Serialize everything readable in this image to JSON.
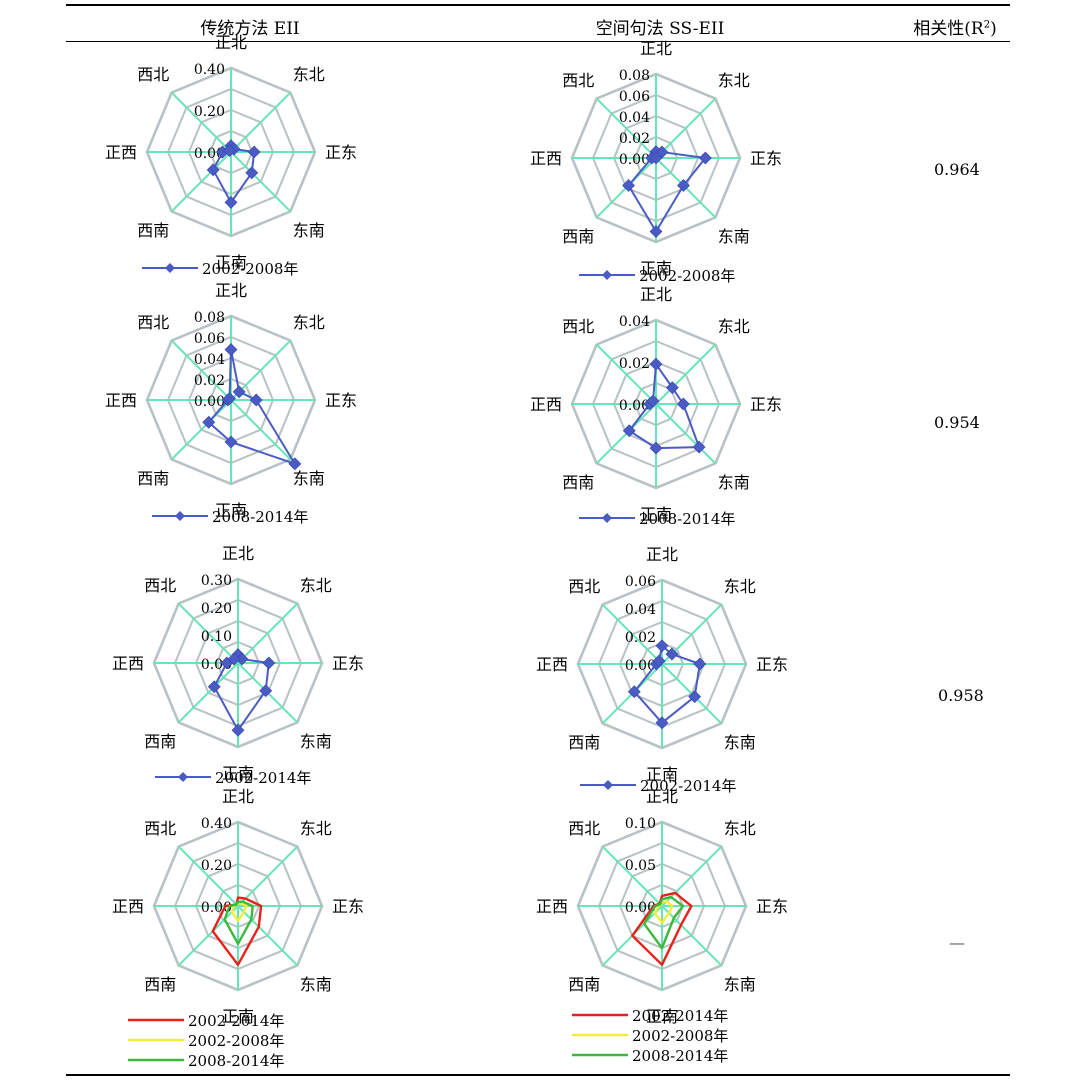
{
  "header": {
    "col1": "传统方法 EII",
    "col2": "空间句法 SS-EII",
    "col3_prefix": "相关性(R",
    "col3_sup": "2",
    "col3_suffix": ")"
  },
  "r2_values": [
    "0.964",
    "0.954",
    "0.958",
    "—"
  ],
  "chart_data": [
    {
      "type": "radar",
      "method": "EII",
      "row": 1,
      "categories": [
        "正北",
        "东北",
        "正东",
        "东南",
        "正南",
        "西南",
        "正西",
        "西北"
      ],
      "ticks": [
        "0.00",
        "0.20",
        "0.40"
      ],
      "rmax": 0.4,
      "rings": 4,
      "series": [
        {
          "name": "2002-2008年",
          "color": "#4A5BC4",
          "marker": "diamond",
          "values": [
            0.03,
            0.02,
            0.11,
            0.14,
            0.24,
            0.12,
            0.04,
            0.01
          ]
        }
      ]
    },
    {
      "type": "radar",
      "method": "SS-EII",
      "row": 1,
      "categories": [
        "正北",
        "东北",
        "正东",
        "东南",
        "正南",
        "西南",
        "正西",
        "西北"
      ],
      "ticks": [
        "0.00",
        "0.02",
        "0.04",
        "0.06",
        "0.08"
      ],
      "rmax": 0.08,
      "rings": 4,
      "series": [
        {
          "name": "2002-2008年",
          "color": "#4A5BC4",
          "marker": "diamond",
          "values": [
            0.006,
            0.008,
            0.047,
            0.037,
            0.07,
            0.037,
            0.004,
            0.0
          ]
        }
      ]
    },
    {
      "type": "radar",
      "method": "EII",
      "row": 2,
      "categories": [
        "正北",
        "东北",
        "正东",
        "东南",
        "正南",
        "西南",
        "正西",
        "西北"
      ],
      "ticks": [
        "0.00",
        "0.02",
        "0.04",
        "0.06",
        "0.08"
      ],
      "rmax": 0.08,
      "rings": 4,
      "series": [
        {
          "name": "2008-2014年",
          "color": "#4A5BC4",
          "marker": "diamond",
          "values": [
            0.048,
            0.011,
            0.024,
            0.086,
            0.04,
            0.03,
            0.003,
            0.002
          ]
        }
      ]
    },
    {
      "type": "radar",
      "method": "SS-EII",
      "row": 2,
      "categories": [
        "正北",
        "东北",
        "正东",
        "东南",
        "正南",
        "西南",
        "正西",
        "西北"
      ],
      "ticks": [
        "0.00",
        "0.02",
        "0.04"
      ],
      "rmax": 0.04,
      "rings": 4,
      "series": [
        {
          "name": "2008-2014年",
          "color": "#4A5BC4",
          "marker": "diamond",
          "values": [
            0.019,
            0.011,
            0.013,
            0.029,
            0.021,
            0.018,
            0.003,
            0.002
          ]
        }
      ]
    },
    {
      "type": "radar",
      "method": "EII",
      "row": 3,
      "categories": [
        "正北",
        "东北",
        "正东",
        "东南",
        "正南",
        "西南",
        "正西",
        "西北"
      ],
      "ticks": [
        "0.00",
        "0.10",
        "0.20",
        "0.30"
      ],
      "rmax": 0.3,
      "rings": 4,
      "series": [
        {
          "name": "2002-2014年",
          "color": "#4A5BC4",
          "marker": "diamond",
          "values": [
            0.03,
            0.02,
            0.11,
            0.14,
            0.24,
            0.12,
            0.04,
            0.02
          ]
        }
      ]
    },
    {
      "type": "radar",
      "method": "SS-EII",
      "row": 3,
      "categories": [
        "正北",
        "东北",
        "正东",
        "东南",
        "正南",
        "西南",
        "正西",
        "西北"
      ],
      "ticks": [
        "0.00",
        "0.02",
        "0.04",
        "0.06"
      ],
      "rmax": 0.06,
      "rings": 4,
      "series": [
        {
          "name": "2002-2014年",
          "color": "#4A5BC4",
          "marker": "diamond",
          "values": [
            0.013,
            0.01,
            0.027,
            0.033,
            0.042,
            0.028,
            0.004,
            0.003
          ]
        }
      ]
    },
    {
      "type": "radar",
      "method": "EII",
      "row": 4,
      "categories": [
        "正北",
        "东北",
        "正东",
        "东南",
        "正南",
        "西南",
        "正西",
        "西北"
      ],
      "ticks": [
        "0.00",
        "0.20",
        "0.40"
      ],
      "rmax": 0.4,
      "rings": 4,
      "series": [
        {
          "name": "2002-2014年",
          "color": "#E8221A",
          "values": [
            0.04,
            0.05,
            0.11,
            0.14,
            0.28,
            0.17,
            0.06,
            0.01
          ]
        },
        {
          "name": "2002-2008年",
          "color": "#F2EE3C",
          "values": [
            0.01,
            0.02,
            0.04,
            0.04,
            0.07,
            0.04,
            0.02,
            0.01
          ]
        },
        {
          "name": "2008-2014年",
          "color": "#3CB93C",
          "values": [
            0.02,
            0.03,
            0.07,
            0.09,
            0.18,
            0.09,
            0.04,
            0.01
          ]
        }
      ]
    },
    {
      "type": "radar",
      "method": "SS-EII",
      "row": 4,
      "categories": [
        "正北",
        "东北",
        "正东",
        "东南",
        "正南",
        "西南",
        "正西",
        "西北"
      ],
      "ticks": [
        "0.00",
        "0.05",
        "0.10"
      ],
      "rmax": 0.1,
      "rings": 4,
      "series": [
        {
          "name": "2002-2014年",
          "color": "#E8221A",
          "values": [
            0.012,
            0.022,
            0.035,
            0.032,
            0.07,
            0.05,
            0.01,
            0.004
          ]
        },
        {
          "name": "2002-2008年",
          "color": "#F2EE3C",
          "values": [
            0.004,
            0.008,
            0.012,
            0.012,
            0.02,
            0.012,
            0.004,
            0.002
          ]
        },
        {
          "name": "2008-2014年",
          "color": "#3CB93C",
          "values": [
            0.008,
            0.015,
            0.025,
            0.02,
            0.05,
            0.03,
            0.008,
            0.003
          ]
        }
      ]
    }
  ]
}
